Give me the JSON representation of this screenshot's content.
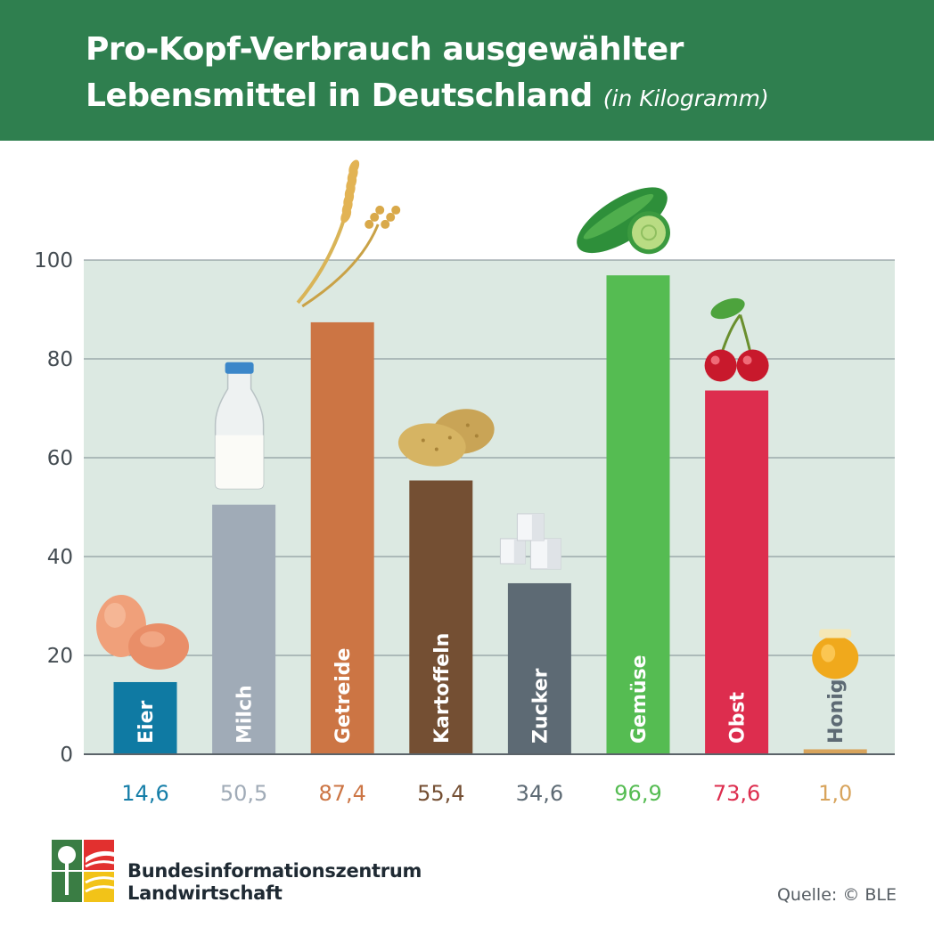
{
  "header": {
    "title_line1": "Pro-Kopf-Verbrauch ausgewählter",
    "title_line2": "Lebensmittel in Deutschland",
    "unit": "(in Kilogramm)"
  },
  "chart_data": {
    "type": "bar",
    "categories": [
      "Eier",
      "Milch",
      "Getreide",
      "Kartoffeln",
      "Zucker",
      "Gemüse",
      "Obst",
      "Honig"
    ],
    "values": [
      14.6,
      50.5,
      87.4,
      55.4,
      34.6,
      96.9,
      73.6,
      1.0
    ],
    "value_labels": [
      "14,6",
      "50,5",
      "87,4",
      "55,4",
      "34,6",
      "96,9",
      "73,6",
      "1,0"
    ],
    "bar_colors": [
      "#0f7aa3",
      "#a0abb7",
      "#cc7544",
      "#744f33",
      "#5d6a74",
      "#55bc52",
      "#dd2d4e",
      "#d8a45c"
    ],
    "label_colors": [
      "#157ea8",
      "#a0abb7",
      "#cc7544",
      "#744f33",
      "#5d6a74",
      "#55bc52",
      "#dd2d4e",
      "#d8a45c"
    ],
    "inside_label_colors": [
      "#ffffff",
      "#ffffff",
      "#ffffff",
      "#ffffff",
      "#ffffff",
      "#ffffff",
      "#ffffff",
      "#5d6a74"
    ],
    "icons": [
      "eggs-icon",
      "milk-bottle-icon",
      "wheat-icon",
      "potatoes-icon",
      "sugar-cubes-icon",
      "cucumber-icon",
      "cherries-icon",
      "honey-jar-icon"
    ],
    "yticks": [
      0,
      20,
      40,
      60,
      80,
      100
    ],
    "ylim": [
      0,
      100
    ],
    "grid": true,
    "plot_background": "#dce9e2"
  },
  "footer": {
    "org_line1": "Bundesinformationszentrum",
    "org_line2": "Landwirtschaft",
    "source": "Quelle: © BLE"
  }
}
